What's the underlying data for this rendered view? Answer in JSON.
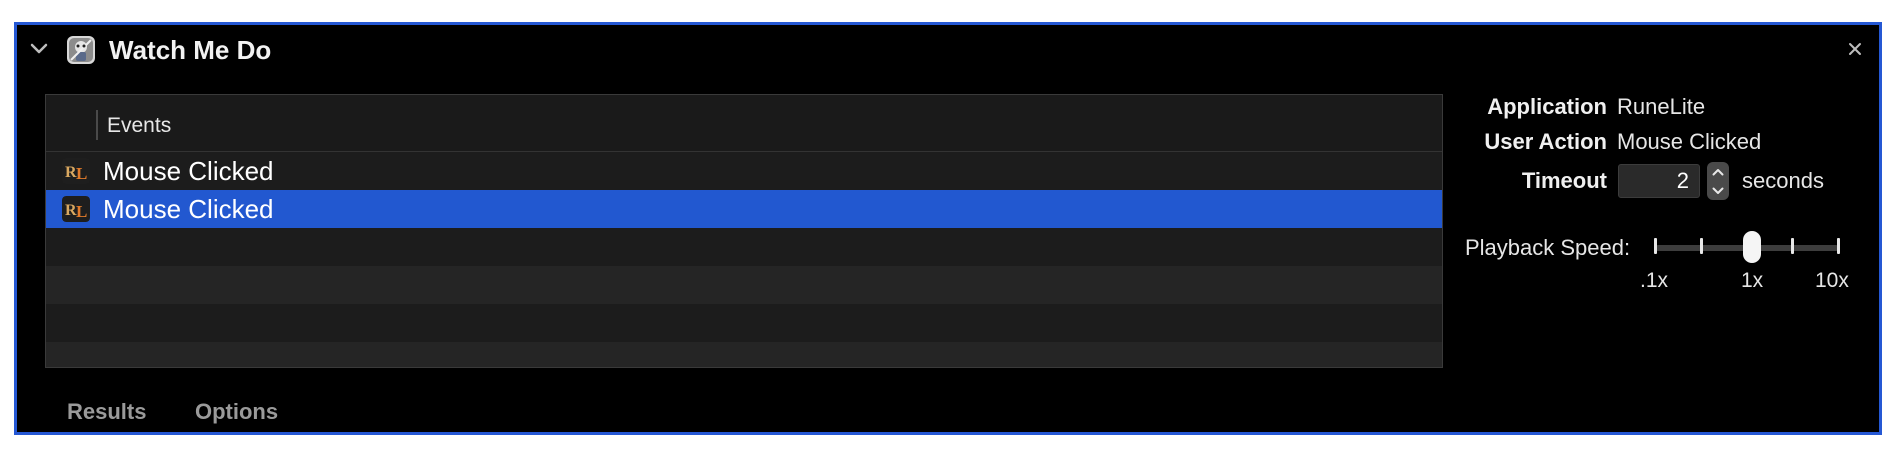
{
  "header": {
    "title": "Watch Me Do",
    "collapse_icon": "chevron-down-icon",
    "app_icon": "automator-robot-icon",
    "close_icon": "close-icon"
  },
  "events_table": {
    "column_header": "Events",
    "rows": [
      {
        "label": "Mouse Clicked",
        "icon": "runelite-app-icon",
        "selected": false
      },
      {
        "label": "Mouse Clicked",
        "icon": "runelite-app-icon",
        "selected": true
      }
    ],
    "empty_rows": 4
  },
  "info": {
    "application_label": "Application",
    "application_value": "RuneLite",
    "user_action_label": "User Action",
    "user_action_value": "Mouse Clicked",
    "timeout_label": "Timeout",
    "timeout_value": "2",
    "timeout_unit": "seconds"
  },
  "playback": {
    "label": "Playback Speed:",
    "min_label": ".1x",
    "mid_label": "1x",
    "max_label": "10x",
    "selected": "1x"
  },
  "tabs": {
    "results": "Results",
    "options": "Options"
  },
  "colors": {
    "accent": "#2558d4",
    "selection": "#2258d0",
    "background": "#000000"
  }
}
